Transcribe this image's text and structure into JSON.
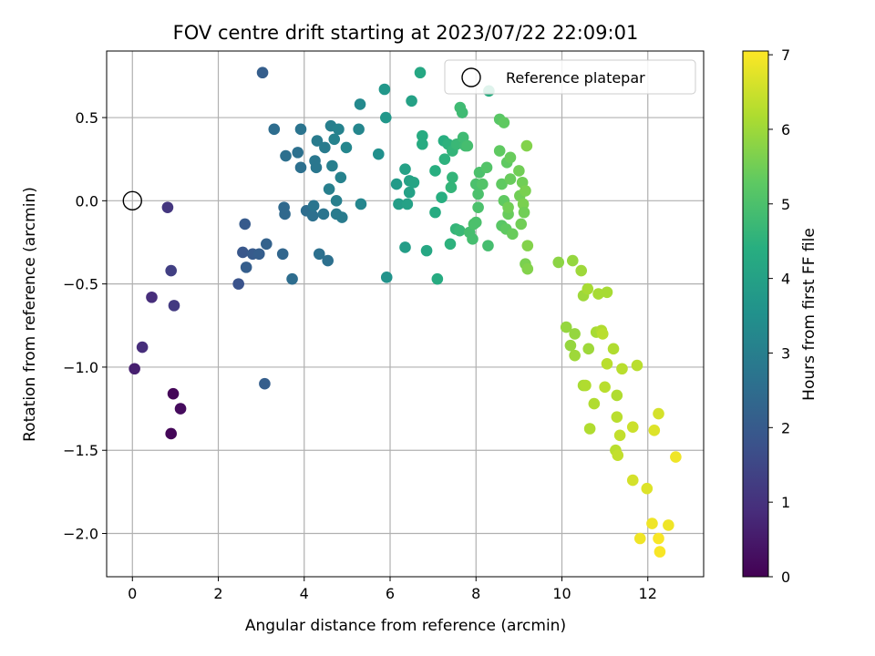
{
  "chart_data": {
    "type": "scatter",
    "title": "FOV centre drift starting at 2023/07/22 22:09:01",
    "xlabel": "Angular distance from reference (arcmin)",
    "ylabel": "Rotation from reference (arcmin)",
    "xlim": [
      -0.6,
      13.3
    ],
    "ylim": [
      -2.26,
      0.9
    ],
    "xticks": [
      0,
      2,
      4,
      6,
      8,
      10,
      12
    ],
    "yticks": [
      -2.0,
      -1.5,
      -1.0,
      -0.5,
      0.0,
      0.5
    ],
    "xtick_labels": [
      "0",
      "2",
      "4",
      "6",
      "8",
      "10",
      "12"
    ],
    "ytick_labels": [
      "−2.0",
      "−1.5",
      "−1.0",
      "−0.5",
      "0.0",
      "0.5"
    ],
    "grid": true,
    "colormap": "viridis",
    "colorbar": {
      "label": "Hours from first FF file",
      "range": [
        0,
        7.05
      ],
      "ticks": [
        0,
        1,
        2,
        3,
        4,
        5,
        6,
        7
      ],
      "tick_labels": [
        "0",
        "1",
        "2",
        "3",
        "4",
        "5",
        "6",
        "7"
      ]
    },
    "legend": {
      "placement": "top-right",
      "entries": [
        "Reference platepar"
      ]
    },
    "reference_point": {
      "x": 0,
      "y": 0
    },
    "points": [
      [
        0.05,
        -1.01,
        0.6
      ],
      [
        0.23,
        -0.88,
        0.9
      ],
      [
        0.45,
        -0.58,
        0.9
      ],
      [
        0.82,
        -0.04,
        1.1
      ],
      [
        0.9,
        -0.42,
        1.3
      ],
      [
        0.97,
        -0.63,
        1.2
      ],
      [
        0.9,
        -1.4,
        0.1
      ],
      [
        0.95,
        -1.16,
        0.1
      ],
      [
        1.12,
        -1.25,
        0.2
      ],
      [
        2.47,
        -0.5,
        1.8
      ],
      [
        2.57,
        -0.31,
        1.9
      ],
      [
        2.62,
        -0.14,
        2.0
      ],
      [
        2.65,
        -0.4,
        2.1
      ],
      [
        2.8,
        -0.32,
        2.0
      ],
      [
        2.95,
        -0.32,
        2.1
      ],
      [
        3.03,
        0.77,
        2.1
      ],
      [
        3.08,
        -1.1,
        2.1
      ],
      [
        3.12,
        -0.26,
        2.2
      ],
      [
        3.3,
        0.43,
        2.5
      ],
      [
        3.5,
        -0.32,
        2.3
      ],
      [
        3.53,
        -0.04,
        2.4
      ],
      [
        3.55,
        -0.08,
        2.4
      ],
      [
        3.57,
        0.27,
        2.6
      ],
      [
        3.72,
        -0.47,
        2.5
      ],
      [
        3.85,
        0.29,
        2.6
      ],
      [
        3.92,
        0.43,
        2.7
      ],
      [
        3.92,
        0.2,
        2.6
      ],
      [
        4.05,
        -0.06,
        2.5
      ],
      [
        4.2,
        -0.09,
        2.6
      ],
      [
        4.22,
        -0.03,
        2.7
      ],
      [
        4.25,
        0.24,
        2.8
      ],
      [
        4.28,
        0.2,
        2.8
      ],
      [
        4.3,
        0.36,
        2.9
      ],
      [
        4.35,
        -0.32,
        2.6
      ],
      [
        4.45,
        -0.08,
        2.7
      ],
      [
        4.48,
        0.32,
        2.9
      ],
      [
        4.55,
        -0.36,
        2.6
      ],
      [
        4.58,
        0.07,
        3.0
      ],
      [
        4.62,
        0.45,
        3.0
      ],
      [
        4.65,
        0.21,
        3.0
      ],
      [
        4.7,
        0.37,
        3.1
      ],
      [
        4.75,
        -0.08,
        2.9
      ],
      [
        4.8,
        0.43,
        3.1
      ],
      [
        4.85,
        0.14,
        3.1
      ],
      [
        4.88,
        -0.1,
        2.9
      ],
      [
        4.75,
        0.0,
        3.0
      ],
      [
        4.98,
        0.32,
        3.2
      ],
      [
        5.27,
        0.43,
        3.2
      ],
      [
        5.3,
        0.58,
        3.3
      ],
      [
        5.32,
        -0.02,
        3.2
      ],
      [
        5.73,
        0.28,
        3.5
      ],
      [
        5.87,
        0.67,
        3.7
      ],
      [
        5.9,
        0.5,
        3.7
      ],
      [
        5.92,
        -0.46,
        3.6
      ],
      [
        6.15,
        0.1,
        3.8
      ],
      [
        6.2,
        -0.02,
        3.9
      ],
      [
        6.35,
        0.19,
        4.0
      ],
      [
        6.35,
        -0.28,
        3.9
      ],
      [
        6.4,
        -0.02,
        4.0
      ],
      [
        6.45,
        0.12,
        4.0
      ],
      [
        6.45,
        0.05,
        4.0
      ],
      [
        6.5,
        0.6,
        4.0
      ],
      [
        6.55,
        0.11,
        4.1
      ],
      [
        6.7,
        0.77,
        4.2
      ],
      [
        6.75,
        0.39,
        4.3
      ],
      [
        6.75,
        0.34,
        4.3
      ],
      [
        6.85,
        -0.3,
        4.2
      ],
      [
        7.05,
        -0.07,
        4.3
      ],
      [
        7.05,
        0.18,
        4.4
      ],
      [
        7.1,
        -0.47,
        4.3
      ],
      [
        7.2,
        0.02,
        4.4
      ],
      [
        7.25,
        0.36,
        4.4
      ],
      [
        7.27,
        0.25,
        4.5
      ],
      [
        7.35,
        0.34,
        4.5
      ],
      [
        7.4,
        -0.26,
        4.5
      ],
      [
        7.42,
        0.08,
        4.6
      ],
      [
        7.45,
        0.14,
        4.6
      ],
      [
        7.45,
        0.3,
        4.6
      ],
      [
        7.53,
        -0.17,
        4.6
      ],
      [
        7.55,
        0.34,
        4.7
      ],
      [
        7.62,
        -0.18,
        4.7
      ],
      [
        7.63,
        0.56,
        4.8
      ],
      [
        7.68,
        0.53,
        4.8
      ],
      [
        7.7,
        0.38,
        4.8
      ],
      [
        7.75,
        0.33,
        4.8
      ],
      [
        7.8,
        0.33,
        4.9
      ],
      [
        7.85,
        -0.19,
        4.9
      ],
      [
        7.92,
        -0.23,
        4.9
      ],
      [
        7.95,
        -0.14,
        5.0
      ],
      [
        8.0,
        -0.13,
        5.0
      ],
      [
        8.0,
        0.1,
        5.0
      ],
      [
        8.05,
        0.04,
        5.0
      ],
      [
        8.05,
        -0.04,
        5.0
      ],
      [
        8.08,
        0.17,
        5.0
      ],
      [
        8.15,
        0.1,
        5.1
      ],
      [
        8.25,
        0.2,
        5.1
      ],
      [
        8.28,
        -0.27,
        4.9
      ],
      [
        8.3,
        0.66,
        4.4
      ],
      [
        8.55,
        0.49,
        5.2
      ],
      [
        8.55,
        0.3,
        5.3
      ],
      [
        8.6,
        0.1,
        5.3
      ],
      [
        8.6,
        -0.15,
        5.2
      ],
      [
        8.65,
        0.0,
        5.3
      ],
      [
        8.65,
        0.47,
        5.3
      ],
      [
        8.7,
        -0.17,
        5.3
      ],
      [
        8.72,
        0.23,
        5.3
      ],
      [
        8.75,
        -0.08,
        5.4
      ],
      [
        8.75,
        -0.04,
        5.5
      ],
      [
        8.8,
        0.13,
        5.4
      ],
      [
        8.8,
        0.26,
        5.4
      ],
      [
        8.85,
        -0.2,
        5.4
      ],
      [
        9.0,
        0.18,
        5.5
      ],
      [
        9.02,
        0.03,
        5.5
      ],
      [
        9.05,
        -0.14,
        5.5
      ],
      [
        9.08,
        0.11,
        5.5
      ],
      [
        9.1,
        -0.02,
        5.6
      ],
      [
        9.12,
        -0.07,
        5.5
      ],
      [
        9.15,
        -0.38,
        5.6
      ],
      [
        9.15,
        0.06,
        5.6
      ],
      [
        9.18,
        0.33,
        5.7
      ],
      [
        9.2,
        -0.41,
        5.7
      ],
      [
        9.2,
        -0.27,
        5.7
      ],
      [
        9.92,
        -0.37,
        5.8
      ],
      [
        10.1,
        -0.76,
        5.9
      ],
      [
        10.2,
        -0.87,
        5.9
      ],
      [
        10.25,
        -0.36,
        5.9
      ],
      [
        10.3,
        -0.8,
        5.9
      ],
      [
        10.3,
        -0.93,
        6.0
      ],
      [
        10.45,
        -0.42,
        6.0
      ],
      [
        10.5,
        -0.57,
        6.0
      ],
      [
        10.5,
        -1.11,
        6.1
      ],
      [
        10.55,
        -1.11,
        6.2
      ],
      [
        10.6,
        -0.53,
        6.1
      ],
      [
        10.62,
        -0.89,
        6.0
      ],
      [
        10.65,
        -1.37,
        6.2
      ],
      [
        10.75,
        -1.22,
        6.2
      ],
      [
        10.8,
        -0.79,
        6.1
      ],
      [
        10.85,
        -0.56,
        6.1
      ],
      [
        10.92,
        -0.78,
        6.2
      ],
      [
        10.95,
        -0.8,
        6.3
      ],
      [
        11.0,
        -1.12,
        6.3
      ],
      [
        11.05,
        -0.55,
        6.1
      ],
      [
        11.05,
        -0.98,
        6.3
      ],
      [
        11.2,
        -0.89,
        6.2
      ],
      [
        11.25,
        -1.5,
        6.3
      ],
      [
        11.28,
        -1.17,
        6.2
      ],
      [
        11.28,
        -1.3,
        6.3
      ],
      [
        11.3,
        -1.53,
        6.4
      ],
      [
        11.35,
        -1.41,
        6.4
      ],
      [
        11.4,
        -1.01,
        6.3
      ],
      [
        11.65,
        -1.36,
        6.5
      ],
      [
        11.65,
        -1.68,
        6.6
      ],
      [
        11.75,
        -0.99,
        6.3
      ],
      [
        11.82,
        -2.03,
        6.9
      ],
      [
        11.98,
        -1.73,
        6.7
      ],
      [
        12.1,
        -1.94,
        6.9
      ],
      [
        12.15,
        -1.38,
        6.7
      ],
      [
        12.25,
        -1.28,
        6.6
      ],
      [
        12.25,
        -2.03,
        7.0
      ],
      [
        12.28,
        -2.11,
        7.0
      ],
      [
        12.48,
        -1.95,
        6.9
      ],
      [
        12.65,
        -1.54,
        6.9
      ]
    ]
  }
}
